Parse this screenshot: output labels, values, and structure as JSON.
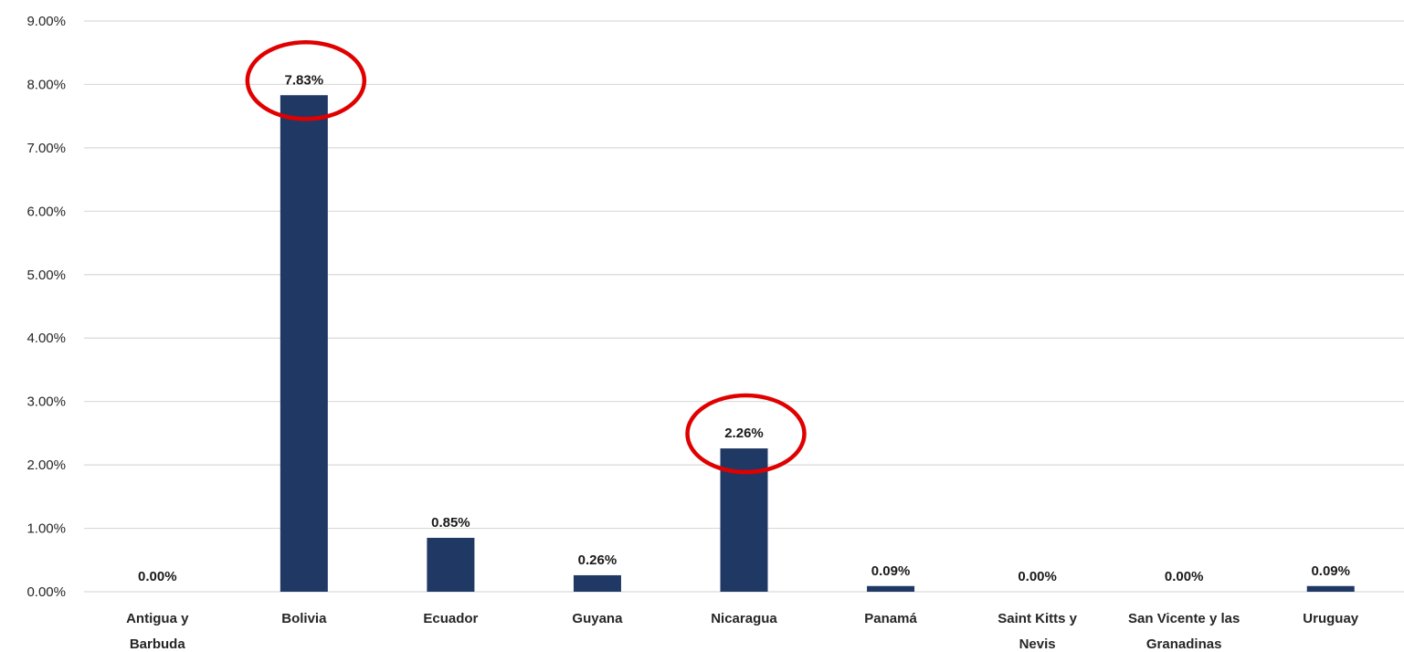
{
  "chart_data": {
    "type": "bar",
    "categories": [
      [
        "Antigua y",
        "Barbuda"
      ],
      [
        "Bolivia"
      ],
      [
        "Ecuador"
      ],
      [
        "Guyana"
      ],
      [
        "Nicaragua"
      ],
      [
        "Panamá"
      ],
      [
        "Saint Kitts y",
        "Nevis"
      ],
      [
        "San Vicente y las",
        "Granadinas"
      ],
      [
        "Uruguay"
      ]
    ],
    "values": [
      0.0,
      7.83,
      0.85,
      0.26,
      2.26,
      0.09,
      0.0,
      0.0,
      0.09
    ],
    "data_labels": [
      "0.00%",
      "7.83%",
      "0.85%",
      "0.26%",
      "2.26%",
      "0.09%",
      "0.00%",
      "0.00%",
      "0.09%"
    ],
    "y_ticks": [
      "0.00%",
      "1.00%",
      "2.00%",
      "3.00%",
      "4.00%",
      "5.00%",
      "6.00%",
      "7.00%",
      "8.00%",
      "9.00%"
    ],
    "ylim": [
      0,
      9
    ],
    "grid": true,
    "legend": "none",
    "bar_color": "#203864",
    "highlight_color": "#e00000",
    "highlighted": [
      "Bolivia",
      "Nicaragua"
    ],
    "title": "",
    "xlabel": "",
    "ylabel": ""
  }
}
